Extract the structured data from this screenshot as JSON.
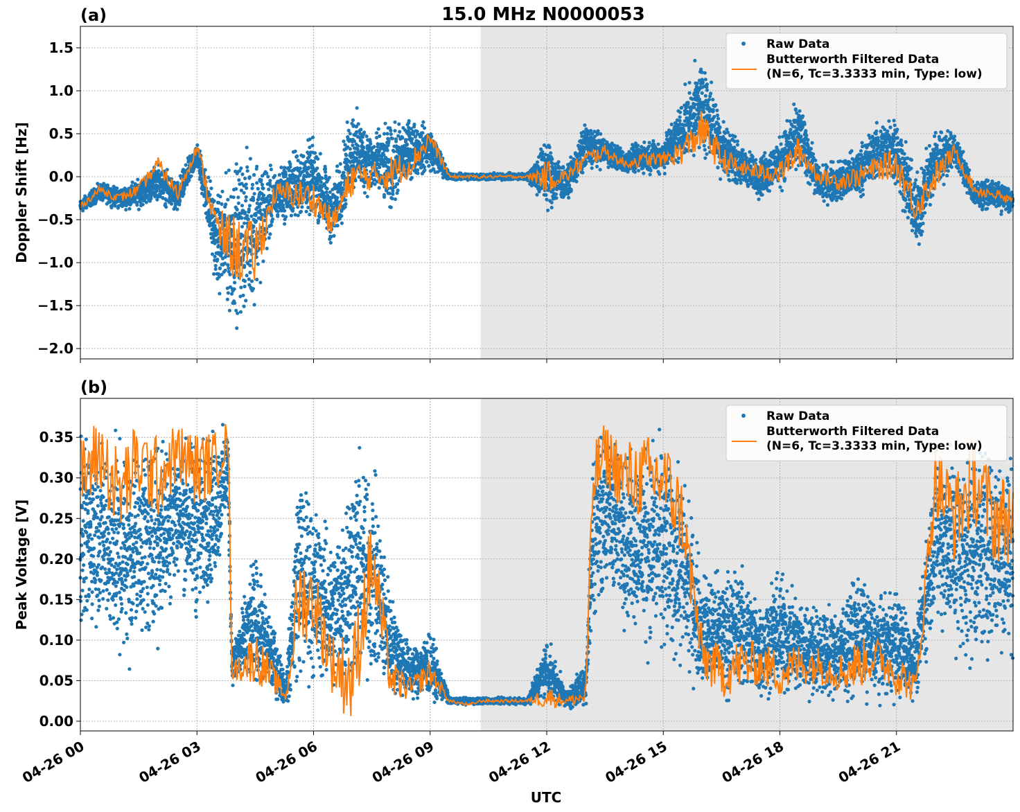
{
  "title": "15.0 MHz N0000053",
  "colors": {
    "raw": "#1f77b4",
    "filtered": "#ff7f0e",
    "shade": "#e6e6e6",
    "grid": "#b0b0b0"
  },
  "legend": {
    "raw_label": "Raw Data",
    "filtered_label_line1": "Butterworth Filtered Data",
    "filtered_label_line2": "(N=6, Tc=3.3333 min, Type: low)"
  },
  "xaxis": {
    "label": "UTC",
    "range_hours": [
      0,
      24
    ],
    "ticks_hours": [
      0,
      3,
      6,
      9,
      12,
      15,
      18,
      21
    ],
    "tick_labels": [
      "04-26 00",
      "04-26 03",
      "04-26 06",
      "04-26 09",
      "04-26 12",
      "04-26 15",
      "04-26 18",
      "04-26 21"
    ]
  },
  "chart_data": [
    {
      "type": "scatter",
      "panel_label": "(a)",
      "title": "15.0 MHz N0000053",
      "ylabel": "Doppler Shift [Hz]",
      "ylim": [
        -2.12,
        1.75
      ],
      "yticks": [
        -2.0,
        -1.5,
        -1.0,
        -0.5,
        0.0,
        0.5,
        1.0,
        1.5
      ],
      "ytick_labels": [
        "−2.0",
        "−1.5",
        "−1.0",
        "−0.5",
        "0.0",
        "0.5",
        "1.0",
        "1.5"
      ],
      "shaded_x": [
        10.3,
        24
      ],
      "grid": true,
      "legend_position": "upper right",
      "series": [
        {
          "name": "Butterworth Filtered Data",
          "style": "line",
          "x": [
            0,
            0.5,
            1,
            1.5,
            2,
            2.5,
            3,
            3.5,
            4,
            4.5,
            5,
            5.5,
            6,
            6.5,
            7,
            7.5,
            8,
            8.5,
            9,
            9.5,
            10,
            10.3,
            11,
            11.5,
            12,
            12.5,
            13,
            13.5,
            14,
            14.5,
            15,
            15.5,
            16,
            16.5,
            17,
            17.5,
            18,
            18.5,
            19,
            19.5,
            20,
            20.5,
            21,
            21.5,
            22,
            22.5,
            23,
            23.5,
            24
          ],
          "y": [
            -0.35,
            -0.15,
            -0.25,
            -0.15,
            0.15,
            -0.2,
            0.35,
            -0.6,
            -0.85,
            -0.9,
            -0.2,
            -0.2,
            -0.25,
            -0.55,
            0.0,
            0.0,
            0.05,
            0.15,
            0.45,
            0.0,
            0.0,
            0.0,
            0.0,
            0.0,
            0.0,
            0.0,
            0.2,
            0.3,
            0.15,
            0.2,
            0.2,
            0.3,
            0.55,
            0.2,
            0.1,
            0.05,
            0.05,
            0.3,
            0.0,
            -0.05,
            0.0,
            0.1,
            0.15,
            -0.35,
            0.0,
            0.3,
            -0.15,
            -0.2,
            -0.3
          ]
        },
        {
          "name": "Raw Data",
          "style": "points",
          "x": [
            0,
            0.5,
            1,
            1.5,
            2,
            2.5,
            3,
            3.5,
            4,
            4.5,
            5,
            5.5,
            6,
            6.5,
            7,
            7.5,
            8,
            8.5,
            9,
            9.5,
            10,
            10.3,
            11,
            11.5,
            12,
            12.5,
            13,
            13.5,
            14,
            14.5,
            15,
            15.5,
            16,
            16.5,
            17,
            17.5,
            18,
            18.5,
            19,
            19.5,
            20,
            20.5,
            21,
            21.5,
            22,
            22.5,
            23,
            23.5,
            24
          ],
          "ymin": [
            -0.45,
            -0.3,
            -0.4,
            -0.4,
            -0.3,
            -0.5,
            0.1,
            -1.4,
            -1.9,
            -1.6,
            -0.6,
            -0.6,
            -0.55,
            -0.9,
            -0.3,
            -0.3,
            -0.5,
            -0.1,
            0.0,
            -0.05,
            -0.05,
            -0.05,
            -0.05,
            -0.05,
            -0.5,
            -0.3,
            0.0,
            0.1,
            0.0,
            0.0,
            0.0,
            0.1,
            0.2,
            -0.1,
            -0.15,
            -0.3,
            -0.2,
            0.0,
            -0.3,
            -0.4,
            -0.3,
            -0.1,
            -0.2,
            -1.0,
            -0.3,
            0.1,
            -0.4,
            -0.4,
            -0.5
          ],
          "ymax": [
            -0.25,
            -0.05,
            -0.1,
            0.0,
            0.2,
            0.0,
            0.45,
            -0.1,
            0.4,
            0.55,
            0.1,
            0.4,
            0.55,
            0.0,
            0.95,
            0.6,
            0.7,
            0.75,
            0.65,
            0.05,
            0.05,
            0.05,
            0.05,
            0.05,
            0.6,
            0.1,
            0.7,
            0.5,
            0.35,
            0.45,
            0.5,
            1.0,
            1.55,
            0.8,
            0.4,
            0.3,
            0.55,
            1.0,
            0.15,
            0.25,
            0.4,
            0.7,
            0.85,
            0.1,
            0.7,
            0.55,
            0.0,
            0.0,
            -0.1
          ]
        }
      ]
    },
    {
      "type": "scatter",
      "panel_label": "(b)",
      "ylabel": "Peak Voltage [V]",
      "ylim": [
        -0.012,
        0.398
      ],
      "yticks": [
        0.0,
        0.05,
        0.1,
        0.15,
        0.2,
        0.25,
        0.3,
        0.35
      ],
      "ytick_labels": [
        "0.00",
        "0.05",
        "0.10",
        "0.15",
        "0.20",
        "0.25",
        "0.30",
        "0.35"
      ],
      "shaded_x": [
        10.3,
        24
      ],
      "grid": true,
      "legend_position": "upper right",
      "series": [
        {
          "name": "Butterworth Filtered Data",
          "style": "line",
          "x": [
            0,
            0.5,
            1,
            1.5,
            2,
            2.5,
            3,
            3.5,
            3.8,
            3.9,
            4.5,
            5,
            5.3,
            5.6,
            6,
            6.5,
            7,
            7.5,
            8,
            8.5,
            9,
            9.5,
            10,
            10.3,
            11,
            11.5,
            12,
            12.5,
            13,
            13.2,
            13.5,
            14,
            14.5,
            15,
            15.5,
            16,
            16.5,
            17,
            17.5,
            18,
            18.5,
            19,
            19.5,
            20,
            20.5,
            21,
            21.5,
            22,
            22.5,
            23,
            23.5,
            24
          ],
          "y": [
            0.3,
            0.33,
            0.28,
            0.32,
            0.3,
            0.33,
            0.31,
            0.32,
            0.35,
            0.06,
            0.08,
            0.05,
            0.03,
            0.15,
            0.15,
            0.07,
            0.05,
            0.2,
            0.05,
            0.04,
            0.06,
            0.025,
            0.02,
            0.025,
            0.025,
            0.025,
            0.03,
            0.025,
            0.03,
            0.3,
            0.33,
            0.3,
            0.3,
            0.3,
            0.25,
            0.08,
            0.06,
            0.07,
            0.07,
            0.06,
            0.07,
            0.07,
            0.06,
            0.07,
            0.08,
            0.06,
            0.04,
            0.3,
            0.25,
            0.3,
            0.25,
            0.25
          ]
        },
        {
          "name": "Raw Data",
          "style": "points",
          "x": [
            0,
            0.5,
            1,
            1.5,
            2,
            2.5,
            3,
            3.5,
            3.8,
            3.9,
            4.5,
            5,
            5.3,
            5.6,
            6,
            6.5,
            7,
            7.5,
            8,
            8.5,
            9,
            9.5,
            10,
            10.3,
            11,
            11.5,
            12,
            12.5,
            13,
            13.2,
            13.5,
            14,
            14.5,
            15,
            15.5,
            16,
            16.5,
            17,
            17.5,
            18,
            18.5,
            19,
            19.5,
            20,
            20.5,
            21,
            21.5,
            22,
            22.5,
            23,
            23.5,
            24
          ],
          "ymin": [
            0.08,
            0.1,
            0.04,
            0.07,
            0.08,
            0.15,
            0.1,
            0.15,
            0.25,
            0.04,
            0.03,
            0.02,
            0.015,
            0.02,
            0.02,
            0.02,
            0.01,
            0.02,
            0.02,
            0.02,
            0.02,
            0.02,
            0.02,
            0.02,
            0.02,
            0.02,
            0.02,
            0.015,
            0.01,
            0.1,
            0.15,
            0.1,
            0.07,
            0.05,
            0.05,
            0.02,
            0.015,
            0.02,
            0.015,
            0.02,
            0.015,
            0.02,
            0.015,
            0.02,
            0.02,
            0.015,
            0.02,
            0.1,
            0.05,
            0.04,
            0.05,
            0.05
          ],
          "ymax": [
            0.37,
            0.37,
            0.37,
            0.37,
            0.37,
            0.37,
            0.37,
            0.37,
            0.38,
            0.1,
            0.22,
            0.12,
            0.06,
            0.35,
            0.3,
            0.24,
            0.36,
            0.35,
            0.17,
            0.1,
            0.12,
            0.03,
            0.03,
            0.03,
            0.03,
            0.03,
            0.11,
            0.04,
            0.08,
            0.37,
            0.37,
            0.37,
            0.37,
            0.37,
            0.33,
            0.2,
            0.2,
            0.21,
            0.16,
            0.2,
            0.17,
            0.15,
            0.15,
            0.2,
            0.16,
            0.18,
            0.12,
            0.37,
            0.37,
            0.37,
            0.37,
            0.37
          ]
        }
      ]
    }
  ]
}
